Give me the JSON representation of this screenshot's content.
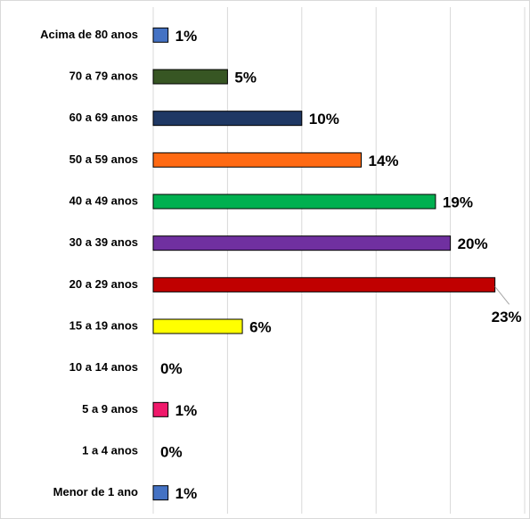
{
  "chart_data": {
    "type": "bar",
    "orientation": "horizontal",
    "categories": [
      "Acima de 80 anos",
      "70 a 79 anos",
      "60 a 69 anos",
      "50 a 59 anos",
      "40 a 49 anos",
      "30 a 39 anos",
      "20 a 29 anos",
      "15  a 19 anos",
      "10 a 14 anos",
      "5 a 9 anos",
      "1 a 4 anos",
      "Menor de 1 ano"
    ],
    "values": [
      1,
      5,
      10,
      14,
      19,
      20,
      23,
      6,
      0,
      1,
      0,
      1
    ],
    "value_labels": [
      "1%",
      "5%",
      "10%",
      "14%",
      "19%",
      "20%",
      "23%",
      "6%",
      "0%",
      "1%",
      "0%",
      "1%"
    ],
    "colors": [
      "#4472c4",
      "#375623",
      "#1f3864",
      "#ff6a13",
      "#00b050",
      "#7030a0",
      "#c00000",
      "#ffff00",
      null,
      "#f0196b",
      null,
      "#4472c4"
    ],
    "xlim": [
      0,
      25
    ],
    "xticks": [
      0,
      5,
      10,
      15,
      20,
      25
    ],
    "grid": true
  }
}
